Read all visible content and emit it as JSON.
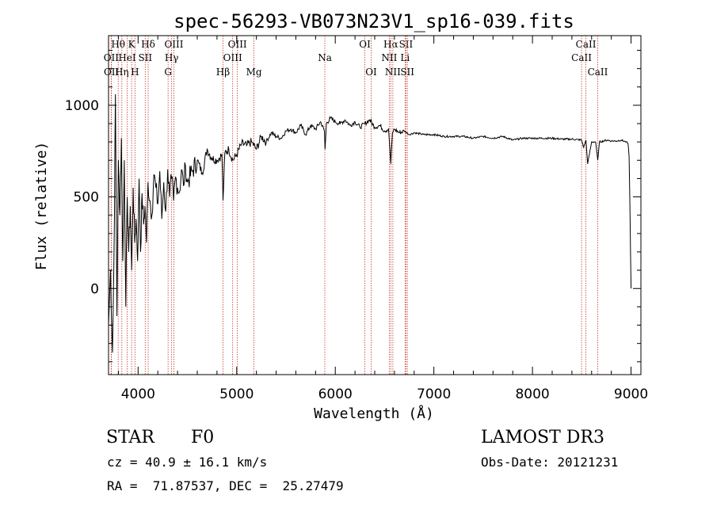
{
  "chart_data": {
    "type": "line",
    "title": "spec-56293-VB073N23V1_sp16-039.fits",
    "xlabel": "Wavelength (Å)",
    "ylabel": "Flux (relative)",
    "xlim": [
      3700,
      9100
    ],
    "ylim": [
      -470,
      1380
    ],
    "x_ticks": [
      4000,
      5000,
      6000,
      7000,
      8000,
      9000
    ],
    "y_ticks": [
      0,
      500,
      1000
    ],
    "series": [
      {
        "name": "flux",
        "x": [
          3700,
          3720,
          3740,
          3755,
          3770,
          3785,
          3800,
          3815,
          3830,
          3845,
          3860,
          3875,
          3890,
          3905,
          3920,
          3935,
          3950,
          3965,
          3980,
          3995,
          4010,
          4025,
          4040,
          4055,
          4070,
          4085,
          4100,
          4120,
          4140,
          4160,
          4180,
          4200,
          4220,
          4240,
          4260,
          4280,
          4300,
          4320,
          4340,
          4360,
          4380,
          4400,
          4420,
          4440,
          4460,
          4480,
          4500,
          4550,
          4600,
          4650,
          4700,
          4750,
          4800,
          4850,
          4861,
          4880,
          4920,
          4960,
          5000,
          5050,
          5100,
          5150,
          5200,
          5250,
          5300,
          5350,
          5400,
          5450,
          5500,
          5550,
          5600,
          5650,
          5700,
          5750,
          5800,
          5850,
          5890,
          5896,
          5910,
          5950,
          6000,
          6050,
          6100,
          6150,
          6200,
          6250,
          6300,
          6350,
          6400,
          6450,
          6500,
          6540,
          6563,
          6580,
          6600,
          6650,
          6700,
          6750,
          6800,
          6900,
          7000,
          7100,
          7200,
          7300,
          7400,
          7500,
          7600,
          7700,
          7800,
          7900,
          8000,
          8100,
          8200,
          8300,
          8400,
          8498,
          8520,
          8542,
          8560,
          8600,
          8640,
          8662,
          8680,
          8720,
          8760,
          8800,
          8850,
          8900,
          8950,
          8970,
          8980,
          8990,
          9000
        ],
        "values": [
          -200,
          100,
          -350,
          150,
          1060,
          -150,
          700,
          400,
          820,
          150,
          700,
          -100,
          500,
          200,
          450,
          100,
          550,
          250,
          380,
          150,
          600,
          200,
          520,
          350,
          450,
          250,
          580,
          480,
          400,
          620,
          550,
          460,
          640,
          380,
          580,
          420,
          650,
          500,
          600,
          480,
          610,
          550,
          530,
          650,
          560,
          670,
          580,
          640,
          700,
          630,
          760,
          710,
          700,
          730,
          480,
          740,
          760,
          700,
          730,
          790,
          780,
          800,
          760,
          830,
          800,
          850,
          830,
          820,
          860,
          870,
          850,
          890,
          840,
          890,
          870,
          910,
          860,
          760,
          900,
          930,
          910,
          900,
          920,
          890,
          910,
          880,
          900,
          920,
          880,
          890,
          860,
          870,
          680,
          850,
          870,
          850,
          860,
          840,
          850,
          840,
          840,
          830,
          830,
          830,
          820,
          830,
          820,
          830,
          810,
          820,
          820,
          820,
          820,
          815,
          815,
          810,
          770,
          810,
          680,
          800,
          800,
          700,
          800,
          805,
          810,
          805,
          805,
          810,
          800,
          790,
          720,
          400,
          0
        ]
      }
    ],
    "lines": [
      {
        "label": "Hθ",
        "x": 3798,
        "row": 0
      },
      {
        "label": "OII",
        "x": 3727,
        "row": 1
      },
      {
        "label": "OII",
        "x": 3729,
        "row": 2
      },
      {
        "label": "Hη",
        "x": 3835,
        "row": 2
      },
      {
        "label": "HeI",
        "x": 3889,
        "row": 1
      },
      {
        "label": "K",
        "x": 3934,
        "row": 0
      },
      {
        "label": "H",
        "x": 3968,
        "row": 2
      },
      {
        "label": "SII",
        "x": 4072,
        "row": 1
      },
      {
        "label": "Hδ",
        "x": 4102,
        "row": 0
      },
      {
        "label": "OIII",
        "x": 4363,
        "row": 0
      },
      {
        "label": "Hγ",
        "x": 4340,
        "row": 1
      },
      {
        "label": "G",
        "x": 4304,
        "row": 2
      },
      {
        "label": "Hβ",
        "x": 4861,
        "row": 2
      },
      {
        "label": "OIII",
        "x": 5007,
        "row": 0
      },
      {
        "label": "OIII",
        "x": 4959,
        "row": 1
      },
      {
        "label": "Mg",
        "x": 5175,
        "row": 2
      },
      {
        "label": "Na",
        "x": 5894,
        "row": 1
      },
      {
        "label": "OI",
        "x": 6300,
        "row": 0
      },
      {
        "label": "OI",
        "x": 6364,
        "row": 2
      },
      {
        "label": "Hα",
        "x": 6563,
        "row": 0
      },
      {
        "label": "NII",
        "x": 6548,
        "row": 1
      },
      {
        "label": "NII",
        "x": 6584,
        "row": 2
      },
      {
        "label": "SII",
        "x": 6717,
        "row": 0
      },
      {
        "label": "Li",
        "x": 6708,
        "row": 1
      },
      {
        "label": "SII",
        "x": 6731,
        "row": 2
      },
      {
        "label": "CaII",
        "x": 8542,
        "row": 0
      },
      {
        "label": "CaII",
        "x": 8498,
        "row": 1
      },
      {
        "label": "CaII",
        "x": 8662,
        "row": 2
      }
    ]
  },
  "info": {
    "object_class": "STAR",
    "subclass": "F0",
    "survey": "LAMOST DR3",
    "redshift": "cz = 40.9 ± 16.1 km/s",
    "obs_date": "Obs-Date: 20121231",
    "coords": "RA =  71.87537, DEC =  25.27479"
  }
}
